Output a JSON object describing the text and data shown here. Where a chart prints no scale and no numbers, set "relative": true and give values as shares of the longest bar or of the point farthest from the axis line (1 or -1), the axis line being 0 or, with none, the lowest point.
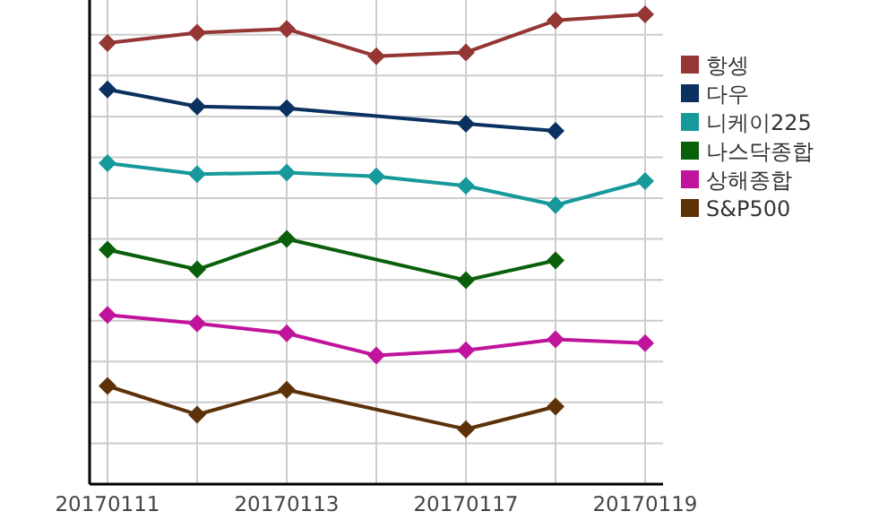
{
  "chart_data": {
    "type": "line",
    "relative": true,
    "grid": true,
    "legend": "right",
    "marker": "diamond",
    "line_style": "solid",
    "categories": [
      "20170111",
      null,
      "20170113",
      null,
      "20170117",
      null,
      "20170119"
    ],
    "series": [
      {
        "name": "항셍",
        "color": "#943634",
        "values": [
          0.939,
          0.961,
          0.969,
          0.911,
          0.919,
          0.987,
          1
        ]
      },
      {
        "name": "다우",
        "color": "#0b3160",
        "values": [
          0.84,
          0.804,
          0.8,
          null,
          0.767,
          0.752,
          null
        ]
      },
      {
        "name": "니케이225",
        "color": "#17999c",
        "values": [
          0.683,
          0.66,
          0.663,
          0.655,
          0.635,
          0.594,
          0.645
        ]
      },
      {
        "name": "나스닥종합",
        "color": "#0a600a",
        "values": [
          0.499,
          0.457,
          0.522,
          null,
          0.434,
          0.476,
          null
        ]
      },
      {
        "name": "상해종합",
        "color": "#c0149c",
        "values": [
          0.36,
          0.342,
          0.321,
          0.274,
          0.285,
          0.308,
          0.3
        ]
      },
      {
        "name": "S&P500",
        "color": "#5e3209",
        "values": [
          0.209,
          0.148,
          0.201,
          null,
          0.117,
          0.165,
          null
        ]
      }
    ]
  }
}
